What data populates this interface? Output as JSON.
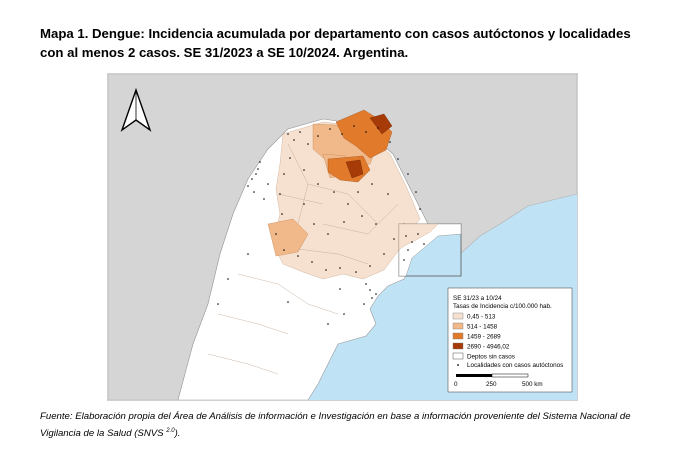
{
  "title": "Mapa 1. Dengue: Incidencia acumulada por departamento con casos autóctonos y localidades con al menos 2 casos. SE 31/2023 a SE 10/2024. Argentina.",
  "legend": {
    "period": "SE 31/23 a 10/24",
    "subtitle": "Tasas de Incidencia c/100.000 hab.",
    "classes": [
      {
        "label": "0,45 - 513",
        "color": "#f6e1d0"
      },
      {
        "label": "514 - 1458",
        "color": "#f1b889"
      },
      {
        "label": "1459 - 2689",
        "color": "#e27a2c"
      },
      {
        "label": "2690 - 4946,02",
        "color": "#a63b08"
      }
    ],
    "no_cases_label": "Deptos sin casos",
    "no_cases_color": "#ffffff",
    "localities_label": "Localidades con casos autóctonos"
  },
  "scale_bar": {
    "ticks": [
      "0",
      "250",
      "500 km"
    ]
  },
  "north_arrow": {
    "icon": "north-arrow-icon"
  },
  "footer": {
    "text": "Fuente: Elaboración propia del Área de Análisis de información e Investigación en base a información proveniente del Sistema Nacional de Vigilancia de la Salud (SNVS ",
    "superscript": "2.0",
    "tail": ")."
  },
  "colors": {
    "water": "#bfe3f5",
    "neighbor": "#d5d5d5",
    "argentina": "#ffffff"
  }
}
